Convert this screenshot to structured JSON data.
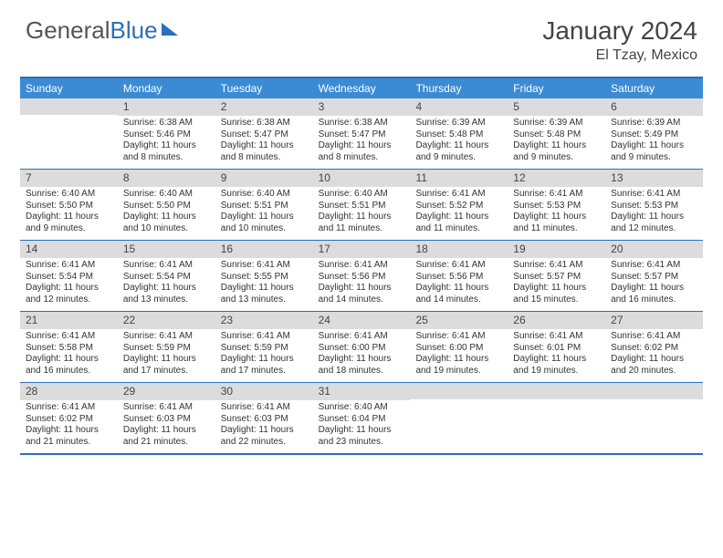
{
  "brand": {
    "part1": "General",
    "part2": "Blue"
  },
  "title": "January 2024",
  "location": "El Tzay, Mexico",
  "colors": {
    "header_bg": "#3B8BD4",
    "border": "#2C6FBB",
    "daynum_bg": "#dcdcdc",
    "text": "#333333",
    "background": "#ffffff"
  },
  "typography": {
    "title_fontsize": 28,
    "location_fontsize": 16,
    "dow_fontsize": 12,
    "cell_fontsize": 10
  },
  "daysOfWeek": [
    "Sunday",
    "Monday",
    "Tuesday",
    "Wednesday",
    "Thursday",
    "Friday",
    "Saturday"
  ],
  "weeks": [
    [
      {
        "n": "",
        "sr": "",
        "ss": "",
        "dl": ""
      },
      {
        "n": "1",
        "sr": "Sunrise: 6:38 AM",
        "ss": "Sunset: 5:46 PM",
        "dl": "Daylight: 11 hours and 8 minutes."
      },
      {
        "n": "2",
        "sr": "Sunrise: 6:38 AM",
        "ss": "Sunset: 5:47 PM",
        "dl": "Daylight: 11 hours and 8 minutes."
      },
      {
        "n": "3",
        "sr": "Sunrise: 6:38 AM",
        "ss": "Sunset: 5:47 PM",
        "dl": "Daylight: 11 hours and 8 minutes."
      },
      {
        "n": "4",
        "sr": "Sunrise: 6:39 AM",
        "ss": "Sunset: 5:48 PM",
        "dl": "Daylight: 11 hours and 9 minutes."
      },
      {
        "n": "5",
        "sr": "Sunrise: 6:39 AM",
        "ss": "Sunset: 5:48 PM",
        "dl": "Daylight: 11 hours and 9 minutes."
      },
      {
        "n": "6",
        "sr": "Sunrise: 6:39 AM",
        "ss": "Sunset: 5:49 PM",
        "dl": "Daylight: 11 hours and 9 minutes."
      }
    ],
    [
      {
        "n": "7",
        "sr": "Sunrise: 6:40 AM",
        "ss": "Sunset: 5:50 PM",
        "dl": "Daylight: 11 hours and 9 minutes."
      },
      {
        "n": "8",
        "sr": "Sunrise: 6:40 AM",
        "ss": "Sunset: 5:50 PM",
        "dl": "Daylight: 11 hours and 10 minutes."
      },
      {
        "n": "9",
        "sr": "Sunrise: 6:40 AM",
        "ss": "Sunset: 5:51 PM",
        "dl": "Daylight: 11 hours and 10 minutes."
      },
      {
        "n": "10",
        "sr": "Sunrise: 6:40 AM",
        "ss": "Sunset: 5:51 PM",
        "dl": "Daylight: 11 hours and 11 minutes."
      },
      {
        "n": "11",
        "sr": "Sunrise: 6:41 AM",
        "ss": "Sunset: 5:52 PM",
        "dl": "Daylight: 11 hours and 11 minutes."
      },
      {
        "n": "12",
        "sr": "Sunrise: 6:41 AM",
        "ss": "Sunset: 5:53 PM",
        "dl": "Daylight: 11 hours and 11 minutes."
      },
      {
        "n": "13",
        "sr": "Sunrise: 6:41 AM",
        "ss": "Sunset: 5:53 PM",
        "dl": "Daylight: 11 hours and 12 minutes."
      }
    ],
    [
      {
        "n": "14",
        "sr": "Sunrise: 6:41 AM",
        "ss": "Sunset: 5:54 PM",
        "dl": "Daylight: 11 hours and 12 minutes."
      },
      {
        "n": "15",
        "sr": "Sunrise: 6:41 AM",
        "ss": "Sunset: 5:54 PM",
        "dl": "Daylight: 11 hours and 13 minutes."
      },
      {
        "n": "16",
        "sr": "Sunrise: 6:41 AM",
        "ss": "Sunset: 5:55 PM",
        "dl": "Daylight: 11 hours and 13 minutes."
      },
      {
        "n": "17",
        "sr": "Sunrise: 6:41 AM",
        "ss": "Sunset: 5:56 PM",
        "dl": "Daylight: 11 hours and 14 minutes."
      },
      {
        "n": "18",
        "sr": "Sunrise: 6:41 AM",
        "ss": "Sunset: 5:56 PM",
        "dl": "Daylight: 11 hours and 14 minutes."
      },
      {
        "n": "19",
        "sr": "Sunrise: 6:41 AM",
        "ss": "Sunset: 5:57 PM",
        "dl": "Daylight: 11 hours and 15 minutes."
      },
      {
        "n": "20",
        "sr": "Sunrise: 6:41 AM",
        "ss": "Sunset: 5:57 PM",
        "dl": "Daylight: 11 hours and 16 minutes."
      }
    ],
    [
      {
        "n": "21",
        "sr": "Sunrise: 6:41 AM",
        "ss": "Sunset: 5:58 PM",
        "dl": "Daylight: 11 hours and 16 minutes."
      },
      {
        "n": "22",
        "sr": "Sunrise: 6:41 AM",
        "ss": "Sunset: 5:59 PM",
        "dl": "Daylight: 11 hours and 17 minutes."
      },
      {
        "n": "23",
        "sr": "Sunrise: 6:41 AM",
        "ss": "Sunset: 5:59 PM",
        "dl": "Daylight: 11 hours and 17 minutes."
      },
      {
        "n": "24",
        "sr": "Sunrise: 6:41 AM",
        "ss": "Sunset: 6:00 PM",
        "dl": "Daylight: 11 hours and 18 minutes."
      },
      {
        "n": "25",
        "sr": "Sunrise: 6:41 AM",
        "ss": "Sunset: 6:00 PM",
        "dl": "Daylight: 11 hours and 19 minutes."
      },
      {
        "n": "26",
        "sr": "Sunrise: 6:41 AM",
        "ss": "Sunset: 6:01 PM",
        "dl": "Daylight: 11 hours and 19 minutes."
      },
      {
        "n": "27",
        "sr": "Sunrise: 6:41 AM",
        "ss": "Sunset: 6:02 PM",
        "dl": "Daylight: 11 hours and 20 minutes."
      }
    ],
    [
      {
        "n": "28",
        "sr": "Sunrise: 6:41 AM",
        "ss": "Sunset: 6:02 PM",
        "dl": "Daylight: 11 hours and 21 minutes."
      },
      {
        "n": "29",
        "sr": "Sunrise: 6:41 AM",
        "ss": "Sunset: 6:03 PM",
        "dl": "Daylight: 11 hours and 21 minutes."
      },
      {
        "n": "30",
        "sr": "Sunrise: 6:41 AM",
        "ss": "Sunset: 6:03 PM",
        "dl": "Daylight: 11 hours and 22 minutes."
      },
      {
        "n": "31",
        "sr": "Sunrise: 6:40 AM",
        "ss": "Sunset: 6:04 PM",
        "dl": "Daylight: 11 hours and 23 minutes."
      },
      {
        "n": "",
        "sr": "",
        "ss": "",
        "dl": ""
      },
      {
        "n": "",
        "sr": "",
        "ss": "",
        "dl": ""
      },
      {
        "n": "",
        "sr": "",
        "ss": "",
        "dl": ""
      }
    ]
  ]
}
